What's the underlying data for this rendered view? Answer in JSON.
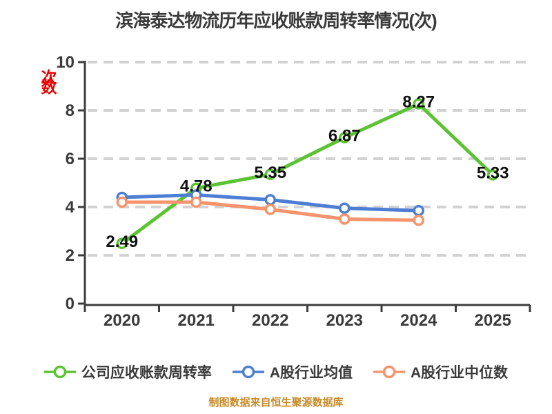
{
  "title": "滨海泰达物流历年应收账款周转率情况(次)",
  "ylabel_unit": "次数",
  "footer": "制图数据来自恒生聚源数据库",
  "colors": {
    "axis": "#3d3d3d",
    "grid": "#d2d2d2",
    "tick_label": "#3a3a3a",
    "data_label": "#111111",
    "ylabel_red": "#e80000",
    "footer_gold": "#c58a2a",
    "marker_fill": "#ffffff"
  },
  "chart_data": {
    "type": "line",
    "title": "滨海泰达物流历年应收账款周转率情况(次)",
    "x": [
      "2020",
      "2021",
      "2022",
      "2023",
      "2024",
      "2025"
    ],
    "ylim": [
      0,
      10
    ],
    "yticks": [
      0,
      2,
      4,
      6,
      8,
      10
    ],
    "xlabel": "",
    "ylabel": "次数",
    "grid": "horizontal-dashed",
    "legend_position": "bottom",
    "series": [
      {
        "name": "公司应收账款周转率",
        "color": "#5bc332",
        "values": [
          2.49,
          4.78,
          5.35,
          6.87,
          8.27,
          5.33
        ],
        "data_labels": true
      },
      {
        "name": "A股行业均值",
        "color": "#4d7ed3",
        "values": [
          4.4,
          4.5,
          4.3,
          3.95,
          3.85,
          null
        ],
        "data_labels": false
      },
      {
        "name": "A股行业中位数",
        "color": "#f5946c",
        "values": [
          4.2,
          4.2,
          3.9,
          3.5,
          3.45,
          null
        ],
        "data_labels": false
      }
    ],
    "footer": "制图数据来自恒生聚源数据库"
  }
}
